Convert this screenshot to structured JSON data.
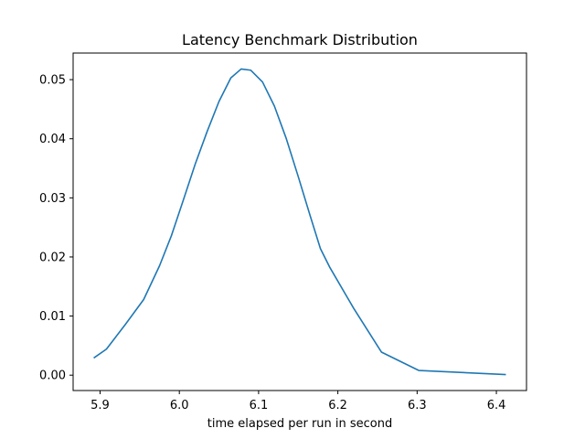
{
  "chart_data": {
    "type": "line",
    "title": "Latency Benchmark Distribution",
    "xlabel": "time elapsed per run in second",
    "ylabel": "",
    "xlim": [
      5.866,
      6.438
    ],
    "ylim": [
      -0.0026,
      0.0545
    ],
    "xticks": [
      5.9,
      6.0,
      6.1,
      6.2,
      6.3,
      6.4
    ],
    "xtick_labels": [
      "5.9",
      "6.0",
      "6.1",
      "6.2",
      "6.3",
      "6.4"
    ],
    "yticks": [
      0.0,
      0.01,
      0.02,
      0.03,
      0.04,
      0.05
    ],
    "ytick_labels": [
      "0.00",
      "0.01",
      "0.02",
      "0.03",
      "0.04",
      "0.05"
    ],
    "grid": false,
    "series": [
      {
        "color": "#1f77b4",
        "x": [
          5.892,
          5.908,
          5.932,
          5.955,
          5.975,
          5.99,
          6.005,
          6.02,
          6.035,
          6.05,
          6.065,
          6.078,
          6.09,
          6.105,
          6.12,
          6.135,
          6.15,
          6.165,
          6.178,
          6.19,
          6.22,
          6.255,
          6.302,
          6.412
        ],
        "y": [
          0.0029,
          0.0044,
          0.0086,
          0.0128,
          0.0185,
          0.0236,
          0.0296,
          0.0357,
          0.0412,
          0.0463,
          0.0503,
          0.0518,
          0.0516,
          0.0496,
          0.0455,
          0.04,
          0.0336,
          0.027,
          0.0214,
          0.0182,
          0.0113,
          0.0039,
          0.0008,
          0.0001
        ]
      }
    ]
  }
}
